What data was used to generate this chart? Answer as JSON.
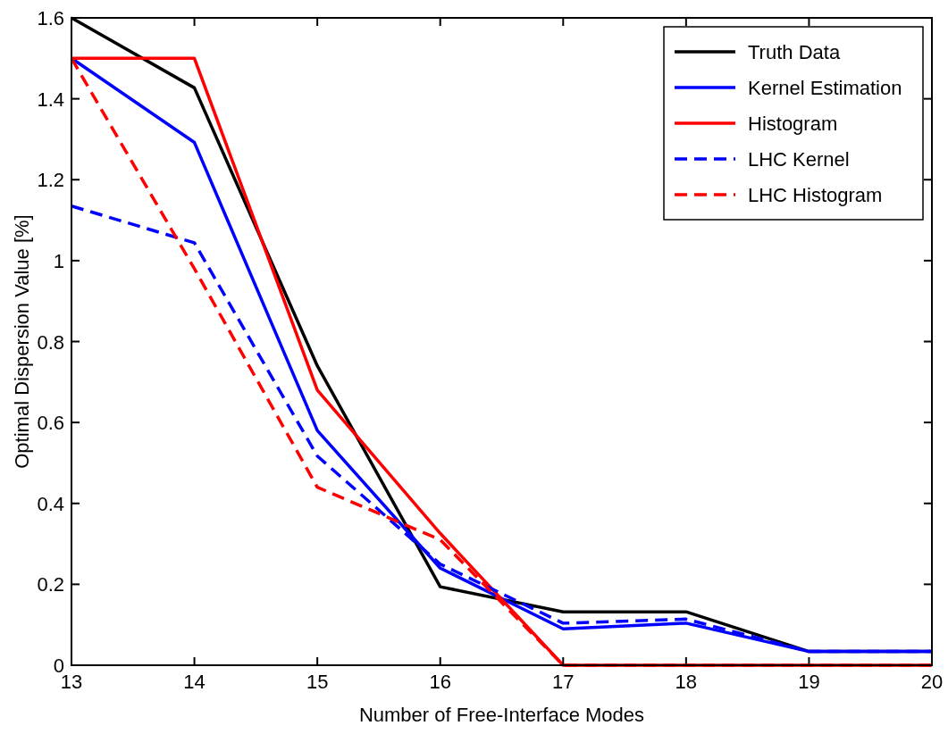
{
  "chart_data": {
    "type": "line",
    "xlabel": "Number of Free-Interface Modes",
    "ylabel": "Optimal Dispersion Value [%]",
    "x": [
      13,
      14,
      15,
      16,
      17,
      18,
      19,
      20
    ],
    "xlim": [
      13,
      20
    ],
    "xticks": [
      13,
      14,
      15,
      16,
      17,
      18,
      19,
      20
    ],
    "ylim": [
      0,
      1.6
    ],
    "yticks": [
      0,
      {
        "value": 0.2,
        "label": "0.2"
      },
      {
        "value": 0.4,
        "label": "0.4"
      },
      {
        "value": 0.6,
        "label": "0.6"
      },
      {
        "value": 0.8,
        "label": "0.8"
      },
      1,
      {
        "value": 1.2,
        "label": "1.2"
      },
      {
        "value": 1.4,
        "label": "1.4"
      },
      {
        "value": 1.6,
        "label": "1.6"
      }
    ],
    "grid": false,
    "legend": "top right",
    "marker": "none",
    "series": [
      {
        "name": "Truth Data",
        "color": "#000000",
        "line_style": "solid",
        "values": [
          1.6,
          1.427,
          0.74,
          0.194,
          0.132,
          0.132,
          0.034,
          0.034
        ]
      },
      {
        "name": "Kernel Estimation",
        "color": "#0000ff",
        "line_style": "solid",
        "values": [
          1.5,
          1.292,
          0.58,
          0.24,
          0.09,
          0.104,
          0.034,
          0.034
        ]
      },
      {
        "name": "Histogram",
        "color": "#ff0000",
        "line_style": "solid",
        "values": [
          1.5,
          1.5,
          0.68,
          0.326,
          0,
          0,
          0,
          0
        ]
      },
      {
        "name": "LHC Kernel",
        "color": "#0000ff",
        "line_style": "dashed",
        "values": [
          1.135,
          1.044,
          0.517,
          0.25,
          0.104,
          0.114,
          0.034,
          0.034
        ]
      },
      {
        "name": "LHC Histogram",
        "color": "#ff0000",
        "line_style": "dashed",
        "values": [
          1.5,
          0.98,
          0.44,
          0.31,
          0,
          0,
          0,
          0
        ]
      }
    ]
  }
}
